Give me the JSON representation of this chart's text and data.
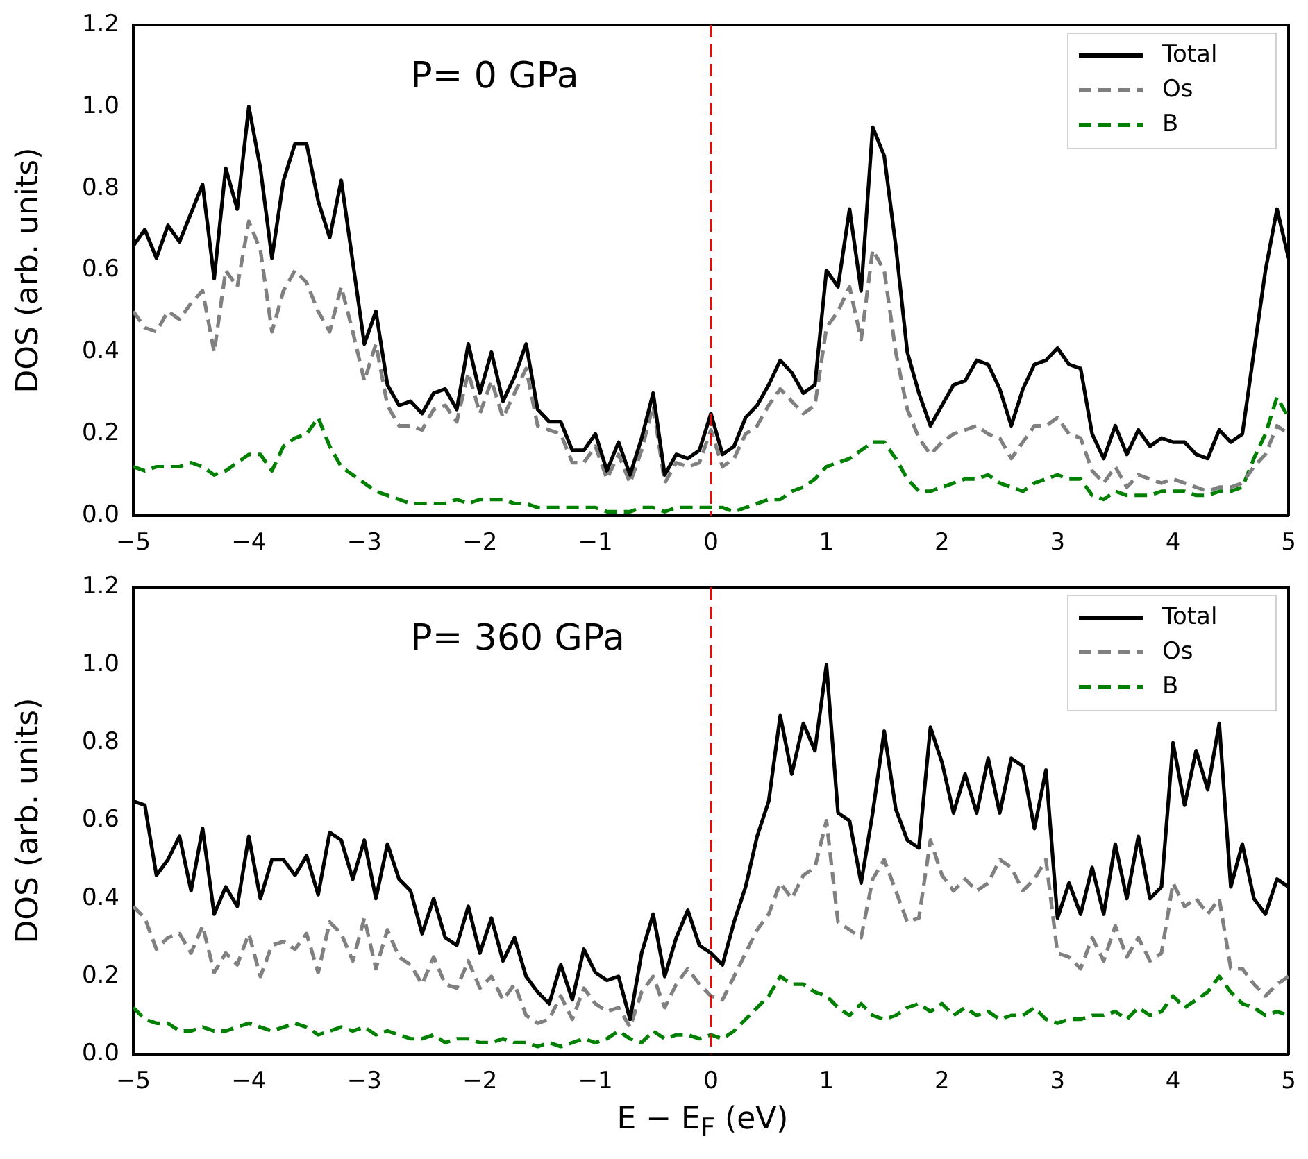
{
  "chart_data": [
    {
      "type": "line",
      "ylabel": "DOS (arb. units)",
      "annotations": [
        "P= 0 GPa"
      ],
      "legend": "top right",
      "grid": false,
      "marker": "none",
      "xlim": [
        -5,
        5
      ],
      "ylim": [
        0,
        1.2
      ],
      "xticks": [
        {
          "value": -5,
          "label": "−5"
        },
        {
          "value": -4,
          "label": "−4"
        },
        {
          "value": -3,
          "label": "−3"
        },
        {
          "value": -2,
          "label": "−2"
        },
        {
          "value": -1,
          "label": "−1"
        },
        0,
        1,
        2,
        3,
        4,
        5
      ],
      "yticks": [
        {
          "value": 0,
          "label": "0.0"
        },
        {
          "value": 0.2,
          "label": "0.2"
        },
        {
          "value": 0.4,
          "label": "0.4"
        },
        {
          "value": 0.6,
          "label": "0.6"
        },
        {
          "value": 0.8,
          "label": "0.8"
        },
        {
          "value": 1,
          "label": "1.0"
        },
        {
          "value": 1.2,
          "label": "1.2"
        }
      ],
      "ref_lines": [
        {
          "axis": "x",
          "value": 0,
          "color": "#ff0000",
          "line_style": "dashed"
        }
      ],
      "x": [
        -5,
        -4.9,
        -4.8,
        -4.7,
        -4.6,
        -4.5,
        -4.4,
        -4.3,
        -4.2,
        -4.1,
        -4,
        -3.9,
        -3.8,
        -3.7,
        -3.6,
        -3.5,
        -3.4,
        -3.3,
        -3.2,
        -3.1,
        -3,
        -2.9,
        -2.8,
        -2.7,
        -2.6,
        -2.5,
        -2.4,
        -2.3,
        -2.2,
        -2.1,
        -2,
        -1.9,
        -1.8,
        -1.7,
        -1.6,
        -1.5,
        -1.4,
        -1.3,
        -1.2,
        -1.1,
        -1,
        -0.9,
        -0.8,
        -0.7,
        -0.6,
        -0.5,
        -0.4,
        -0.3,
        -0.2,
        -0.1,
        0,
        0.1,
        0.2,
        0.3,
        0.4,
        0.5,
        0.6,
        0.7,
        0.8,
        0.9,
        1,
        1.1,
        1.2,
        1.3,
        1.4,
        1.5,
        1.6,
        1.7,
        1.8,
        1.9,
        2,
        2.1,
        2.2,
        2.3,
        2.4,
        2.5,
        2.6,
        2.7,
        2.8,
        2.9,
        3,
        3.1,
        3.2,
        3.3,
        3.4,
        3.5,
        3.6,
        3.7,
        3.8,
        3.9,
        4,
        4.1,
        4.2,
        4.3,
        4.4,
        4.5,
        4.6,
        4.7,
        4.8,
        4.9,
        5
      ],
      "series": [
        {
          "name": "Total",
          "color": "#000000",
          "line_style": "solid",
          "values": [
            0.66,
            0.7,
            0.63,
            0.71,
            0.67,
            0.74,
            0.81,
            0.58,
            0.85,
            0.75,
            1.0,
            0.85,
            0.63,
            0.82,
            0.91,
            0.91,
            0.77,
            0.68,
            0.82,
            0.62,
            0.42,
            0.5,
            0.32,
            0.27,
            0.28,
            0.25,
            0.3,
            0.31,
            0.26,
            0.42,
            0.3,
            0.4,
            0.28,
            0.34,
            0.42,
            0.26,
            0.23,
            0.23,
            0.16,
            0.16,
            0.2,
            0.11,
            0.18,
            0.1,
            0.19,
            0.3,
            0.1,
            0.15,
            0.14,
            0.16,
            0.25,
            0.15,
            0.17,
            0.24,
            0.27,
            0.32,
            0.38,
            0.35,
            0.3,
            0.32,
            0.6,
            0.56,
            0.75,
            0.55,
            0.95,
            0.88,
            0.66,
            0.4,
            0.3,
            0.22,
            0.27,
            0.32,
            0.33,
            0.38,
            0.37,
            0.31,
            0.22,
            0.31,
            0.37,
            0.38,
            0.41,
            0.37,
            0.36,
            0.2,
            0.14,
            0.22,
            0.15,
            0.21,
            0.17,
            0.19,
            0.18,
            0.18,
            0.15,
            0.14,
            0.21,
            0.18,
            0.2,
            0.4,
            0.6,
            0.75,
            0.63
          ]
        },
        {
          "name": "Os",
          "color": "#808080",
          "line_style": "dashed",
          "values": [
            0.5,
            0.46,
            0.45,
            0.5,
            0.48,
            0.52,
            0.55,
            0.4,
            0.6,
            0.56,
            0.72,
            0.65,
            0.45,
            0.55,
            0.6,
            0.57,
            0.5,
            0.45,
            0.56,
            0.45,
            0.33,
            0.42,
            0.27,
            0.22,
            0.22,
            0.21,
            0.26,
            0.27,
            0.23,
            0.35,
            0.25,
            0.33,
            0.24,
            0.3,
            0.36,
            0.22,
            0.21,
            0.2,
            0.13,
            0.13,
            0.17,
            0.09,
            0.15,
            0.08,
            0.16,
            0.27,
            0.08,
            0.13,
            0.12,
            0.13,
            0.21,
            0.12,
            0.14,
            0.2,
            0.22,
            0.27,
            0.31,
            0.28,
            0.25,
            0.27,
            0.46,
            0.5,
            0.56,
            0.43,
            0.65,
            0.6,
            0.4,
            0.26,
            0.19,
            0.15,
            0.18,
            0.2,
            0.21,
            0.22,
            0.2,
            0.19,
            0.14,
            0.18,
            0.22,
            0.22,
            0.24,
            0.2,
            0.19,
            0.11,
            0.08,
            0.12,
            0.07,
            0.1,
            0.09,
            0.08,
            0.09,
            0.08,
            0.07,
            0.06,
            0.07,
            0.07,
            0.08,
            0.12,
            0.15,
            0.22,
            0.2
          ]
        },
        {
          "name": "B",
          "color": "#008000",
          "line_style": "dashed",
          "values": [
            0.12,
            0.11,
            0.12,
            0.12,
            0.12,
            0.13,
            0.12,
            0.1,
            0.11,
            0.13,
            0.15,
            0.15,
            0.11,
            0.17,
            0.19,
            0.2,
            0.24,
            0.17,
            0.12,
            0.1,
            0.08,
            0.06,
            0.05,
            0.04,
            0.03,
            0.03,
            0.03,
            0.03,
            0.04,
            0.03,
            0.04,
            0.04,
            0.04,
            0.03,
            0.03,
            0.02,
            0.02,
            0.02,
            0.02,
            0.02,
            0.02,
            0.01,
            0.01,
            0.01,
            0.02,
            0.02,
            0.01,
            0.02,
            0.02,
            0.02,
            0.02,
            0.02,
            0.01,
            0.02,
            0.03,
            0.04,
            0.04,
            0.06,
            0.07,
            0.09,
            0.12,
            0.13,
            0.14,
            0.16,
            0.18,
            0.18,
            0.14,
            0.09,
            0.06,
            0.06,
            0.07,
            0.08,
            0.09,
            0.09,
            0.1,
            0.08,
            0.07,
            0.06,
            0.08,
            0.09,
            0.1,
            0.09,
            0.09,
            0.05,
            0.04,
            0.06,
            0.05,
            0.05,
            0.05,
            0.06,
            0.06,
            0.06,
            0.05,
            0.05,
            0.06,
            0.06,
            0.07,
            0.14,
            0.2,
            0.29,
            0.24
          ]
        }
      ]
    },
    {
      "type": "line",
      "xlabel": "E − E$_{F}$ (eV)",
      "ylabel": "DOS (arb. units)",
      "annotations": [
        "P= 360 GPa"
      ],
      "legend": "top right",
      "grid": false,
      "marker": "none",
      "xlim": [
        -5,
        5
      ],
      "ylim": [
        0,
        1.2
      ],
      "xticks": [
        {
          "value": -5,
          "label": "−5"
        },
        {
          "value": -4,
          "label": "−4"
        },
        {
          "value": -3,
          "label": "−3"
        },
        {
          "value": -2,
          "label": "−2"
        },
        {
          "value": -1,
          "label": "−1"
        },
        0,
        1,
        2,
        3,
        4,
        5
      ],
      "yticks": [
        {
          "value": 0,
          "label": "0.0"
        },
        {
          "value": 0.2,
          "label": "0.2"
        },
        {
          "value": 0.4,
          "label": "0.4"
        },
        {
          "value": 0.6,
          "label": "0.6"
        },
        {
          "value": 0.8,
          "label": "0.8"
        },
        {
          "value": 1,
          "label": "1.0"
        },
        {
          "value": 1.2,
          "label": "1.2"
        }
      ],
      "ref_lines": [
        {
          "axis": "x",
          "value": 0,
          "color": "#ff0000",
          "line_style": "dashed"
        }
      ],
      "x": [
        -5,
        -4.9,
        -4.8,
        -4.7,
        -4.6,
        -4.5,
        -4.4,
        -4.3,
        -4.2,
        -4.1,
        -4,
        -3.9,
        -3.8,
        -3.7,
        -3.6,
        -3.5,
        -3.4,
        -3.3,
        -3.2,
        -3.1,
        -3,
        -2.9,
        -2.8,
        -2.7,
        -2.6,
        -2.5,
        -2.4,
        -2.3,
        -2.2,
        -2.1,
        -2,
        -1.9,
        -1.8,
        -1.7,
        -1.6,
        -1.5,
        -1.4,
        -1.3,
        -1.2,
        -1.1,
        -1,
        -0.9,
        -0.8,
        -0.7,
        -0.6,
        -0.5,
        -0.4,
        -0.3,
        -0.2,
        -0.1,
        0,
        0.1,
        0.2,
        0.3,
        0.4,
        0.5,
        0.6,
        0.7,
        0.8,
        0.9,
        1,
        1.1,
        1.2,
        1.3,
        1.4,
        1.5,
        1.6,
        1.7,
        1.8,
        1.9,
        2,
        2.1,
        2.2,
        2.3,
        2.4,
        2.5,
        2.6,
        2.7,
        2.8,
        2.9,
        3,
        3.1,
        3.2,
        3.3,
        3.4,
        3.5,
        3.6,
        3.7,
        3.8,
        3.9,
        4,
        4.1,
        4.2,
        4.3,
        4.4,
        4.5,
        4.6,
        4.7,
        4.8,
        4.9,
        5
      ],
      "series": [
        {
          "name": "Total",
          "color": "#000000",
          "line_style": "solid",
          "values": [
            0.65,
            0.64,
            0.46,
            0.5,
            0.56,
            0.42,
            0.58,
            0.36,
            0.43,
            0.38,
            0.56,
            0.4,
            0.5,
            0.5,
            0.46,
            0.51,
            0.41,
            0.57,
            0.55,
            0.45,
            0.55,
            0.4,
            0.54,
            0.45,
            0.42,
            0.31,
            0.4,
            0.3,
            0.28,
            0.38,
            0.26,
            0.35,
            0.24,
            0.3,
            0.2,
            0.16,
            0.13,
            0.23,
            0.14,
            0.27,
            0.21,
            0.19,
            0.2,
            0.09,
            0.26,
            0.36,
            0.2,
            0.3,
            0.37,
            0.28,
            0.26,
            0.23,
            0.34,
            0.43,
            0.56,
            0.65,
            0.87,
            0.72,
            0.85,
            0.78,
            1.0,
            0.62,
            0.6,
            0.44,
            0.62,
            0.83,
            0.63,
            0.55,
            0.53,
            0.84,
            0.75,
            0.62,
            0.72,
            0.62,
            0.76,
            0.62,
            0.76,
            0.74,
            0.58,
            0.73,
            0.35,
            0.44,
            0.36,
            0.48,
            0.36,
            0.54,
            0.4,
            0.56,
            0.4,
            0.43,
            0.8,
            0.64,
            0.78,
            0.68,
            0.85,
            0.43,
            0.54,
            0.4,
            0.36,
            0.45,
            0.43
          ]
        },
        {
          "name": "Os",
          "color": "#808080",
          "line_style": "dashed",
          "values": [
            0.38,
            0.35,
            0.27,
            0.3,
            0.31,
            0.26,
            0.33,
            0.21,
            0.26,
            0.23,
            0.31,
            0.2,
            0.28,
            0.29,
            0.27,
            0.31,
            0.21,
            0.34,
            0.31,
            0.24,
            0.35,
            0.22,
            0.32,
            0.25,
            0.23,
            0.18,
            0.25,
            0.18,
            0.17,
            0.24,
            0.17,
            0.2,
            0.14,
            0.18,
            0.1,
            0.08,
            0.09,
            0.15,
            0.09,
            0.17,
            0.13,
            0.11,
            0.12,
            0.07,
            0.16,
            0.2,
            0.12,
            0.18,
            0.22,
            0.18,
            0.15,
            0.14,
            0.2,
            0.26,
            0.32,
            0.36,
            0.44,
            0.4,
            0.46,
            0.48,
            0.6,
            0.34,
            0.32,
            0.3,
            0.45,
            0.5,
            0.42,
            0.34,
            0.35,
            0.55,
            0.46,
            0.42,
            0.45,
            0.42,
            0.44,
            0.5,
            0.48,
            0.42,
            0.45,
            0.5,
            0.26,
            0.25,
            0.22,
            0.3,
            0.24,
            0.33,
            0.25,
            0.3,
            0.24,
            0.26,
            0.44,
            0.38,
            0.4,
            0.36,
            0.4,
            0.22,
            0.22,
            0.18,
            0.15,
            0.18,
            0.2
          ]
        },
        {
          "name": "B",
          "color": "#008000",
          "line_style": "dashed",
          "values": [
            0.12,
            0.09,
            0.08,
            0.08,
            0.06,
            0.06,
            0.07,
            0.06,
            0.06,
            0.07,
            0.08,
            0.07,
            0.06,
            0.07,
            0.08,
            0.07,
            0.05,
            0.06,
            0.07,
            0.06,
            0.07,
            0.05,
            0.06,
            0.05,
            0.04,
            0.04,
            0.05,
            0.03,
            0.04,
            0.04,
            0.03,
            0.03,
            0.04,
            0.03,
            0.03,
            0.02,
            0.03,
            0.02,
            0.03,
            0.04,
            0.03,
            0.04,
            0.06,
            0.04,
            0.03,
            0.06,
            0.04,
            0.05,
            0.05,
            0.04,
            0.05,
            0.04,
            0.06,
            0.09,
            0.12,
            0.15,
            0.2,
            0.18,
            0.18,
            0.16,
            0.15,
            0.12,
            0.1,
            0.13,
            0.1,
            0.09,
            0.1,
            0.12,
            0.13,
            0.11,
            0.13,
            0.1,
            0.12,
            0.1,
            0.11,
            0.09,
            0.1,
            0.1,
            0.12,
            0.09,
            0.08,
            0.09,
            0.09,
            0.1,
            0.1,
            0.11,
            0.09,
            0.12,
            0.1,
            0.11,
            0.15,
            0.12,
            0.14,
            0.16,
            0.2,
            0.16,
            0.13,
            0.12,
            0.1,
            0.11,
            0.1
          ]
        }
      ]
    }
  ]
}
